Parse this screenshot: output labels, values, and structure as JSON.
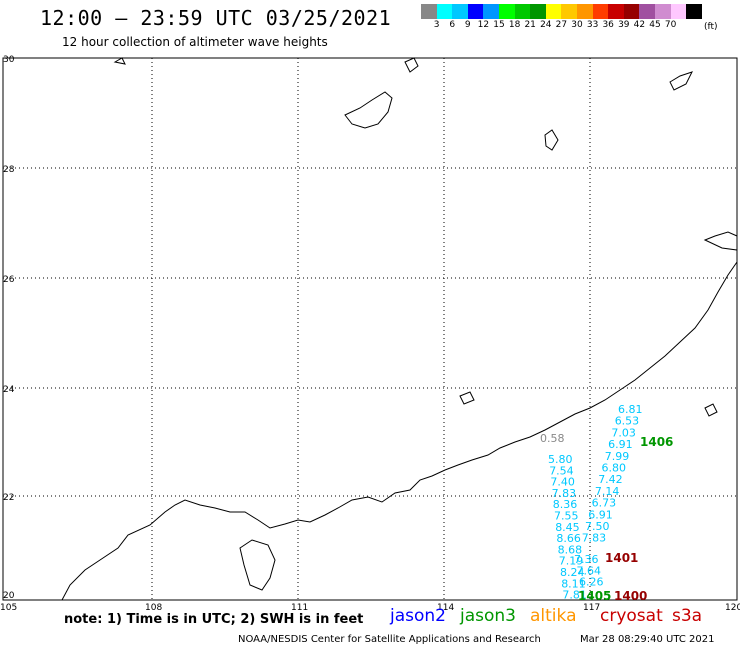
{
  "header": {
    "title": "12:00 – 23:59 UTC 03/25/2021",
    "subtitle": "12 hour collection of altimeter wave heights"
  },
  "color_scale": {
    "colors": [
      "#888888",
      "#00ffff",
      "#00c8ff",
      "#0000ff",
      "#0096ff",
      "#00ff00",
      "#00c800",
      "#009600",
      "#ffff00",
      "#ffc800",
      "#ff9600",
      "#ff3c00",
      "#c80000",
      "#960000",
      "#a050a0",
      "#d08cd0",
      "#ffc8ff",
      "#000000"
    ],
    "labels": [
      "3",
      "6",
      "9",
      "12",
      "15",
      "18",
      "21",
      "24",
      "27",
      "30",
      "33",
      "36",
      "39",
      "42",
      "45",
      "70"
    ],
    "unit": "(ft)"
  },
  "axes": {
    "lon_ticks": [
      "105",
      "108",
      "111",
      "114",
      "117",
      "120"
    ],
    "lat_ticks": [
      "30",
      "28",
      "26",
      "24",
      "22",
      "20"
    ]
  },
  "labels": {
    "zero": "0.58",
    "jason3_track": "1406",
    "cryosat_1": "1401",
    "cryosat_2": "1400",
    "green_bottom": "1405"
  },
  "track_a": [
    "6.81",
    "6.53",
    "7.03",
    "6.91",
    "7.99",
    "6.80",
    "7.42",
    "7.14",
    "6.73",
    "6.91",
    "7.50",
    "7.83"
  ],
  "track_b": [
    "5.80",
    "7.54",
    "7.40",
    "7.83",
    "8.36",
    "7.55",
    "8.45",
    "8.66",
    "8.68",
    "7.19",
    "8.24",
    "8.11",
    "7.81"
  ],
  "track_c": [
    "7.36",
    "7.64",
    "6.26"
  ],
  "legend": {
    "jason2": "jason2",
    "jason3": "jason3",
    "altika": "altika",
    "cryosat": "cryosat",
    "s3a": "s3a",
    "colors": {
      "jason2": "#0000ff",
      "jason3": "#009600",
      "altika": "#ff9600",
      "cryosat": "#c80000",
      "s3a": "#c80000",
      "track": "#00c8ff",
      "dark": "#960000"
    }
  },
  "footer": {
    "note": "note: 1) Time is in UTC; 2) SWH is in feet",
    "credit": "NOAA/NESDIS Center for Satellite Applications and Research",
    "timestamp": "Mar 28 08:29:40 UTC 2021"
  }
}
